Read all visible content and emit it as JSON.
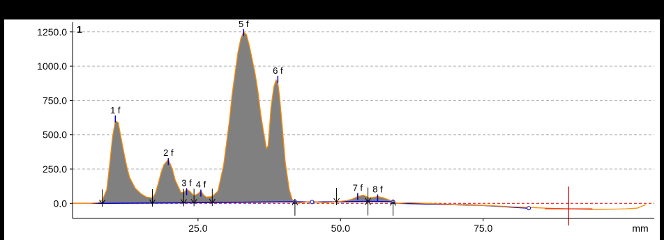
{
  "chart_data": {
    "type": "area",
    "trace_label": "1",
    "xlabel": "mm",
    "ylabel": "",
    "xlim": [
      3,
      105
    ],
    "ylim": [
      -110,
      1320
    ],
    "x_ticks": [
      25.0,
      50.0,
      75.0
    ],
    "x_tick_labels": [
      "25.0",
      "50.0",
      "75.0"
    ],
    "y_ticks": [
      0.0,
      250.0,
      500.0,
      750.0,
      1000.0,
      1250.0
    ],
    "y_tick_labels": [
      "0.0",
      "250.0",
      "500.0",
      "750.0",
      "1000.0",
      "1250.0"
    ],
    "grid": "horizontal dashed",
    "colors": {
      "fill": "#808080",
      "signal": "#ff8c00",
      "baseline": "#0000cc",
      "marker": "#0000cc",
      "zero_line": "#cc0000",
      "cursor": "#dd0000",
      "trace_label": "#ff8c00"
    },
    "peaks": [
      {
        "label": "1 f",
        "x": 10.5,
        "y": 630
      },
      {
        "label": "2 f",
        "x": 19.8,
        "y": 320
      },
      {
        "label": "3 f",
        "x": 23.0,
        "y": 100
      },
      {
        "label": "4 f",
        "x": 25.5,
        "y": 90
      },
      {
        "label": "5 f",
        "x": 33.0,
        "y": 1260
      },
      {
        "label": "6 f",
        "x": 39.0,
        "y": 920
      },
      {
        "label": "7 f",
        "x": 53.0,
        "y": 65
      },
      {
        "label": "8 f",
        "x": 56.5,
        "y": 55
      }
    ],
    "signal": {
      "x": [
        3,
        6,
        7.5,
        8.2,
        9,
        9.5,
        10,
        10.5,
        11,
        11.5,
        12,
        12.5,
        13,
        14,
        15,
        16,
        17,
        17.5,
        18,
        18.5,
        19,
        19.8,
        20.5,
        21,
        22,
        22.5,
        23,
        23.5,
        24.3,
        25,
        25.5,
        26,
        26.5,
        27.5,
        28.5,
        29.5,
        30.5,
        31,
        31.5,
        32,
        32.5,
        33,
        33.5,
        34,
        34.5,
        35,
        35.5,
        36,
        36.5,
        37,
        37.3,
        37.8,
        38.3,
        38.7,
        39,
        39.3,
        39.8,
        40.3,
        41,
        41.5,
        42,
        42.5,
        43,
        44,
        45,
        46,
        47,
        48,
        49,
        50,
        51,
        52,
        53,
        54,
        55,
        56,
        56.5,
        57.5,
        58.5,
        59.2,
        60,
        62,
        65,
        68,
        70,
        72,
        75,
        78,
        80,
        83,
        86,
        90,
        95,
        100,
        102,
        103.5
      ],
      "y": [
        0,
        0,
        5,
        20,
        100,
        280,
        480,
        600,
        590,
        480,
        370,
        270,
        190,
        110,
        70,
        45,
        40,
        70,
        140,
        220,
        280,
        320,
        250,
        170,
        80,
        80,
        100,
        90,
        55,
        70,
        90,
        60,
        45,
        50,
        90,
        280,
        600,
        800,
        950,
        1100,
        1200,
        1250,
        1230,
        1150,
        1050,
        950,
        820,
        650,
        520,
        400,
        420,
        700,
        850,
        900,
        880,
        780,
        550,
        300,
        100,
        30,
        5,
        0,
        5,
        10,
        15,
        10,
        5,
        8,
        10,
        15,
        20,
        30,
        50,
        60,
        40,
        45,
        50,
        40,
        25,
        10,
        0,
        5,
        0,
        -5,
        -10,
        -15,
        -15,
        -20,
        -25,
        -30,
        -35,
        -40,
        -45,
        -40,
        -35,
        -10
      ]
    },
    "baseline": {
      "x": [
        3,
        9,
        17,
        28,
        42,
        45,
        50,
        55,
        59,
        60,
        70,
        75,
        83
      ],
      "y": [
        0,
        0,
        2,
        6,
        12,
        10,
        12,
        14,
        12,
        0,
        -10,
        -15,
        -35
      ]
    },
    "split_markers_down": [
      8.2,
      17,
      22.5,
      24.3,
      27.5,
      49.3,
      54.8
    ],
    "split_markers_up": [
      42,
      54.8,
      59.2
    ],
    "baseline_nodes": [
      42,
      45,
      59.2,
      83
    ],
    "cursor": {
      "x": 90,
      "y": -40
    }
  }
}
